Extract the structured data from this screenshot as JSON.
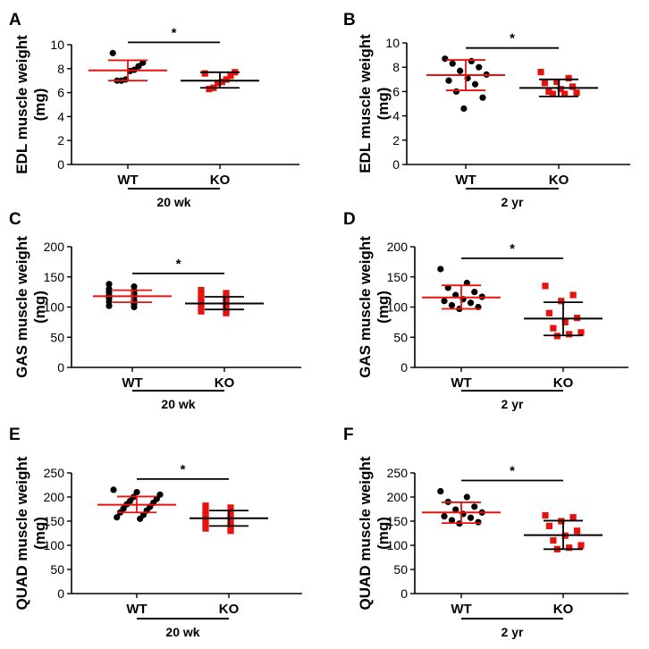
{
  "colors": {
    "wt": "#000000",
    "ko": "#e8120c",
    "axis": "#000000"
  },
  "chart_data": [
    {
      "id": "A",
      "type": "scatter",
      "panel_label": "A",
      "ylabel_line1": "EDL muscle weight",
      "ylabel_line2": "(mg)",
      "yticks": [
        0,
        2,
        4,
        6,
        8,
        10
      ],
      "ylim": [
        0,
        10
      ],
      "categories": [
        "WT",
        "KO"
      ],
      "group_label": "20 wk",
      "significance": "*",
      "series": [
        {
          "name": "WT",
          "values": [
            9.3,
            8.5,
            8.2,
            7.9,
            7.8,
            7.1,
            7.0,
            7.0
          ],
          "mean": 7.85,
          "sd_low": 7.0,
          "sd_high": 8.7
        },
        {
          "name": "KO",
          "values": [
            7.6,
            7.7,
            7.4,
            7.1,
            6.9,
            6.8,
            6.4,
            6.3
          ],
          "mean": 7.0,
          "sd_low": 6.4,
          "sd_high": 7.7
        }
      ]
    },
    {
      "id": "B",
      "type": "scatter",
      "panel_label": "B",
      "ylabel_line1": "EDL muscle weight",
      "ylabel_line2": "(mg)",
      "yticks": [
        0,
        2,
        4,
        6,
        8,
        10
      ],
      "ylim": [
        0,
        10
      ],
      "categories": [
        "WT",
        "KO"
      ],
      "group_label": "2 yr",
      "significance": "*",
      "series": [
        {
          "name": "WT",
          "values": [
            8.7,
            8.5,
            8.3,
            8.0,
            7.7,
            7.4,
            7.1,
            6.9,
            6.6,
            6.0,
            5.5,
            4.6
          ],
          "mean": 7.35,
          "sd_low": 6.1,
          "sd_high": 8.6
        },
        {
          "name": "KO",
          "values": [
            7.6,
            7.1,
            6.8,
            6.7,
            6.4,
            6.2,
            6.0,
            5.9,
            5.8,
            5.8
          ],
          "mean": 6.3,
          "sd_low": 5.6,
          "sd_high": 7.0
        }
      ]
    },
    {
      "id": "C",
      "type": "scatter",
      "panel_label": "C",
      "ylabel_line1": "GAS muscle weight",
      "ylabel_line2": "(mg)",
      "yticks": [
        0,
        50,
        100,
        150,
        200
      ],
      "ylim": [
        0,
        200
      ],
      "categories": [
        "WT",
        "KO"
      ],
      "group_label": "20 wk",
      "significance": "*",
      "series": [
        {
          "name": "WT",
          "values": [
            138,
            134,
            130,
            127,
            125,
            122,
            120,
            118,
            115,
            112,
            109,
            105,
            102,
            100
          ],
          "mean": 118,
          "sd_low": 108,
          "sd_high": 128
        },
        {
          "name": "KO",
          "values": [
            128,
            123,
            120,
            117,
            114,
            111,
            108,
            106,
            104,
            101,
            98,
            95,
            93,
            90
          ],
          "mean": 106,
          "sd_low": 96,
          "sd_high": 117
        }
      ]
    },
    {
      "id": "D",
      "type": "scatter",
      "panel_label": "D",
      "ylabel_line1": "GAS muscle weight",
      "ylabel_line2": "(mg)",
      "yticks": [
        0,
        50,
        100,
        150,
        200
      ],
      "ylim": [
        0,
        200
      ],
      "categories": [
        "WT",
        "KO"
      ],
      "group_label": "2 yr",
      "significance": "*",
      "series": [
        {
          "name": "WT",
          "values": [
            163,
            140,
            132,
            125,
            120,
            117,
            113,
            110,
            107,
            103,
            100,
            97
          ],
          "mean": 116,
          "sd_low": 97,
          "sd_high": 136
        },
        {
          "name": "KO",
          "values": [
            135,
            120,
            110,
            90,
            82,
            75,
            65,
            58,
            55,
            52
          ],
          "mean": 81,
          "sd_low": 53,
          "sd_high": 108
        }
      ]
    },
    {
      "id": "E",
      "type": "scatter",
      "panel_label": "E",
      "ylabel_line1": "QUAD muscle weight",
      "ylabel_line2": "(mg)",
      "yticks": [
        0,
        50,
        100,
        150,
        200,
        250
      ],
      "ylim": [
        0,
        250
      ],
      "categories": [
        "WT",
        "KO"
      ],
      "group_label": "20 wk",
      "significance": "*",
      "series": [
        {
          "name": "WT",
          "values": [
            215,
            210,
            205,
            200,
            196,
            192,
            188,
            185,
            180,
            176,
            172,
            168,
            163,
            158,
            155
          ],
          "mean": 184,
          "sd_low": 168,
          "sd_high": 201
        },
        {
          "name": "KO",
          "values": [
            182,
            178,
            172,
            168,
            165,
            160,
            157,
            154,
            150,
            146,
            142,
            138,
            135,
            130
          ],
          "mean": 156,
          "sd_low": 140,
          "sd_high": 172
        }
      ]
    },
    {
      "id": "F",
      "type": "scatter",
      "panel_label": "F",
      "ylabel_line1": "QUAD muscle weight",
      "ylabel_line2": "(mg)",
      "yticks": [
        0,
        50,
        100,
        150,
        200,
        250
      ],
      "ylim": [
        0,
        250
      ],
      "categories": [
        "WT",
        "KO"
      ],
      "group_label": "2 yr",
      "significance": "*",
      "series": [
        {
          "name": "WT",
          "values": [
            212,
            200,
            190,
            180,
            174,
            168,
            165,
            160,
            157,
            152,
            148,
            145
          ],
          "mean": 168,
          "sd_low": 146,
          "sd_high": 189
        },
        {
          "name": "KO",
          "values": [
            162,
            158,
            150,
            140,
            130,
            120,
            110,
            100,
            95,
            92
          ],
          "mean": 121,
          "sd_low": 92,
          "sd_high": 151
        }
      ]
    }
  ]
}
